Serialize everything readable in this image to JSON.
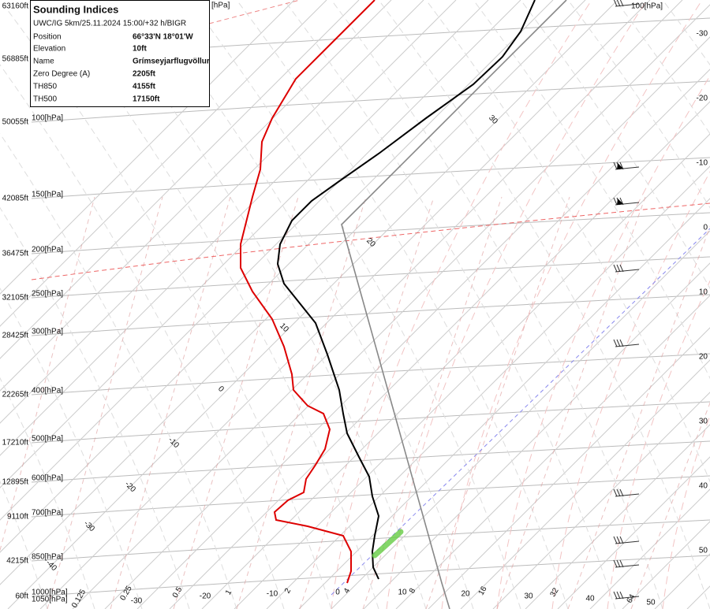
{
  "info": {
    "title": "Sounding Indices",
    "subtitle": "UWC/IG 5km/25.11.2024 15:00/+32 h/BIGR",
    "rows": [
      [
        "Position",
        "66°33'N 18°01'W"
      ],
      [
        "Elevation",
        "10ft"
      ],
      [
        "Name",
        "Grímseyjarflugvöllur"
      ],
      [
        "Zero Degree (A)",
        "2205ft"
      ],
      [
        "TH850",
        "4155ft"
      ],
      [
        "TH500",
        "17150ft"
      ]
    ]
  },
  "top_labels": [
    "[hPa]",
    "100[hPa]"
  ],
  "left_axis": [
    {
      "altitude": "63160ft"
    },
    {
      "altitude": "56885ft"
    },
    {
      "altitude": "50055ft",
      "pressure": "100[hPa]"
    },
    {
      "altitude": "42085ft",
      "pressure": "150[hPa]"
    },
    {
      "altitude": "36475ft",
      "pressure": "200[hPa]"
    },
    {
      "altitude": "32105ft",
      "pressure": "250[hPa]"
    },
    {
      "altitude": "28425ft",
      "pressure": "300[hPa]"
    },
    {
      "altitude": "22265ft",
      "pressure": "400[hPa]"
    },
    {
      "altitude": "17210ft",
      "pressure": "500[hPa]"
    },
    {
      "altitude": "12895ft",
      "pressure": "600[hPa]"
    },
    {
      "altitude": "9110ft",
      "pressure": "700[hPa]"
    },
    {
      "altitude": "4215ft",
      "pressure": "850[hPa]"
    },
    {
      "altitude": "60ft",
      "pressure": "1000[hPa]"
    },
    {
      "pressure": "1050[hPa]"
    }
  ],
  "right_axis": [
    "-30",
    "-20",
    "-10",
    "0",
    "10",
    "20",
    "30",
    "40",
    "50"
  ],
  "isotherm_labels": [
    "30",
    "20",
    "10",
    "0",
    "-10",
    "-20",
    "-30",
    "-40"
  ],
  "mixing_ratio_labels": [
    "0.125",
    "0.25",
    "0.5",
    "1",
    "2",
    "4",
    "8",
    "16",
    "32",
    "64"
  ],
  "bottom_temperatures": [
    "-30",
    "-20",
    "-10",
    "0",
    "10",
    "20",
    "30",
    "40",
    "50"
  ]
}
